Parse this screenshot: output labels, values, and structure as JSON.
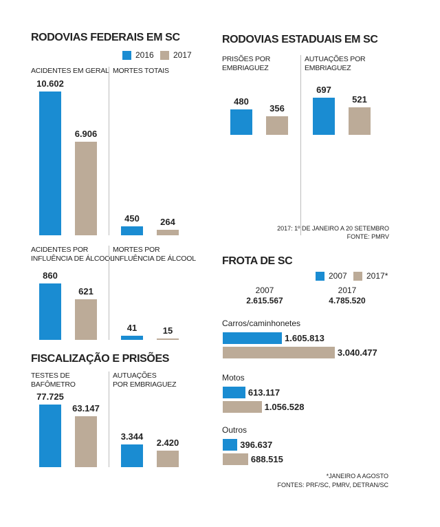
{
  "chart_data": [
    {
      "type": "bar",
      "title": "RODOVIAS FEDERAIS EM SC",
      "series": [
        {
          "name": "2016",
          "color": "#1a8cd2"
        },
        {
          "name": "2017",
          "color": "#bcab98"
        }
      ],
      "panels": [
        {
          "label": "ACIDENTES EM GERAL",
          "values": [
            10602,
            6906
          ],
          "value_labels": [
            "10.602",
            "6.906"
          ],
          "ylim": [
            0,
            10650
          ]
        },
        {
          "label": "MORTES TOTAIS",
          "values": [
            450,
            264
          ],
          "value_labels": [
            "450",
            "264"
          ],
          "ylim": [
            0,
            7300
          ]
        },
        {
          "label": "ACIDENTES POR\nINFLUÊNCIA DE ÁLCOOL",
          "values": [
            860,
            621
          ],
          "value_labels": [
            "860",
            "621"
          ],
          "ylim": [
            0,
            1050
          ]
        },
        {
          "label": "MORTES POR\nINFLUÊNCIA DE ÁLCOOL",
          "values": [
            41,
            15
          ],
          "value_labels": [
            "41",
            "15"
          ],
          "ylim": [
            0,
            680
          ]
        }
      ]
    },
    {
      "type": "bar",
      "title": "FISCALIZAÇÃO E PRISÕES",
      "colors": [
        "#1a8cd2",
        "#bcab98"
      ],
      "panels": [
        {
          "label": "TESTES DE\nBAFÔMETRO",
          "values": [
            77725,
            63147
          ],
          "value_labels": [
            "77.725",
            "63.147"
          ],
          "ylim": [
            0,
            85400
          ]
        },
        {
          "label": "AUTUAÇÕES\nPOR EMBRIAGUEZ",
          "values": [
            3344,
            2420
          ],
          "value_labels": [
            "3.344",
            "2.420"
          ],
          "ylim": [
            0,
            10100
          ]
        }
      ]
    },
    {
      "type": "bar",
      "title": "RODOVIAS ESTADUAIS EM SC",
      "colors": [
        "#1a8cd2",
        "#bcab98"
      ],
      "ylim": [
        -1870,
        700
      ],
      "panels": [
        {
          "label": "PRISÕES POR\nEMBRIAGUEZ",
          "values": [
            480,
            356
          ],
          "value_labels": [
            "480",
            "356"
          ]
        },
        {
          "label": "AUTUAÇÕES POR\nEMBRIAGUEZ",
          "values": [
            697,
            521
          ],
          "value_labels": [
            "697",
            "521"
          ]
        }
      ],
      "notes": [
        "2017: 1º DE JANEIRO A 20 SETEMBRO",
        "FONTE: PMRV"
      ]
    },
    {
      "type": "hbar",
      "title": "FROTA DE SC",
      "series": [
        {
          "name": "2007",
          "color": "#1a8cd2"
        },
        {
          "name": "2017*",
          "color": "#bcab98"
        }
      ],
      "totals": [
        {
          "label": "2007",
          "text": "2.615.567"
        },
        {
          "label": "2017",
          "text": "4.785.520"
        }
      ],
      "xlim": [
        0,
        3360000
      ],
      "groups": [
        {
          "label": "Carros/caminhonetes",
          "values": [
            1605813,
            3040477
          ],
          "value_labels": [
            "1.605.813",
            "3.040.477"
          ]
        },
        {
          "label": "Motos",
          "values": [
            613117,
            1056528
          ],
          "value_labels": [
            "613.117",
            "1.056.528"
          ]
        },
        {
          "label": "Outros",
          "values": [
            396637,
            688515
          ],
          "value_labels": [
            "396.637",
            "688.515"
          ]
        }
      ],
      "notes": [
        "*JANEIRO A AGOSTO",
        "FONTES: PRF/SC, PMRV, DETRAN/SC"
      ]
    }
  ]
}
